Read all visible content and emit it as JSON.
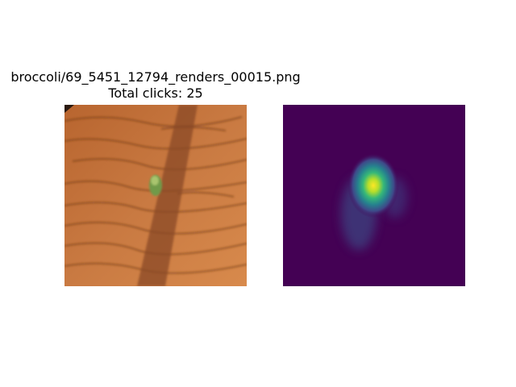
{
  "title": "broccoli/69_5451_12794_renders_00015.png",
  "subtitle": "Total clicks: 25"
}
